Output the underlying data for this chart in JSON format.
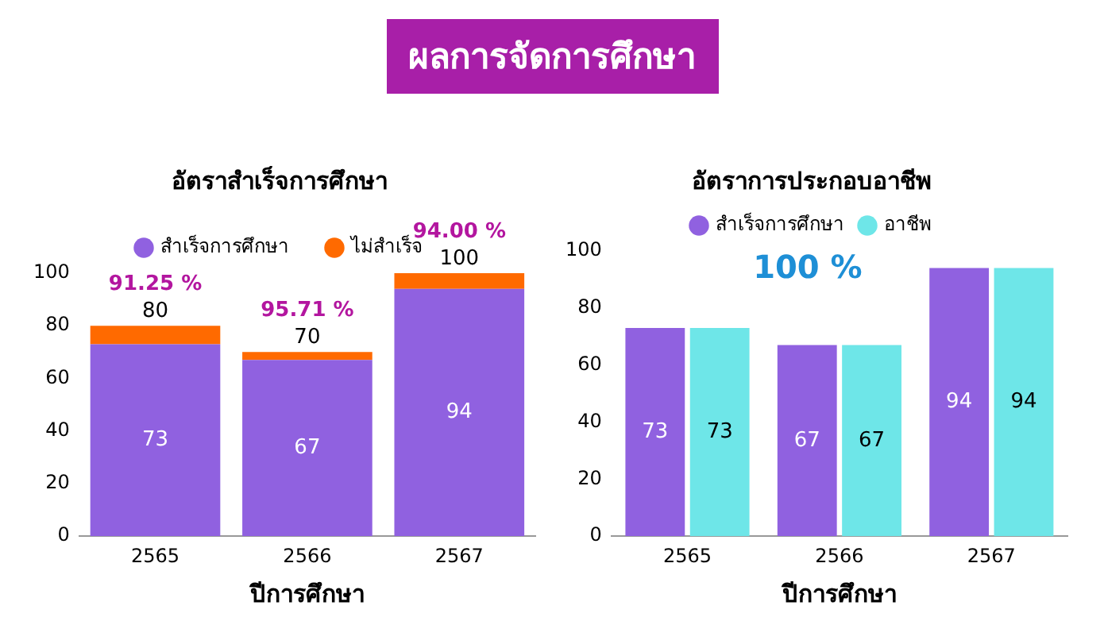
{
  "chart_data": [
    {
      "type": "other",
      "title": "ผลการจัดการศึกษา"
    },
    {
      "type": "bar",
      "title": "อัตราสำเร็จการศึกษา",
      "xlabel": "ปีการศึกษา",
      "categories": [
        "2565",
        "2566",
        "2567"
      ],
      "stacked": true,
      "legend": "top",
      "grid": false,
      "ylim": [
        0,
        100
      ],
      "yticks": [
        0,
        20,
        40,
        60,
        80,
        100
      ],
      "series": [
        {
          "name": "สำเร็จการศึกษา",
          "color": "#9061e0",
          "values": [
            73,
            67,
            94
          ],
          "value_labels": [
            "73",
            "67",
            "94"
          ]
        },
        {
          "name": "ไม่สำเร็จ",
          "color": "#ff6a00",
          "values": [
            7,
            3,
            6
          ]
        }
      ],
      "totals": [
        "80",
        "70",
        "100"
      ],
      "annotations": [
        "91.25 %",
        "95.71 %",
        "94.00 %"
      ]
    },
    {
      "type": "bar",
      "title": "อัตราการประกอบอาชีพ",
      "xlabel": "ปีการศึกษา",
      "categories": [
        "2565",
        "2566",
        "2567"
      ],
      "legend": "top",
      "grid": false,
      "ylim": [
        0,
        100
      ],
      "yticks": [
        0,
        20,
        40,
        60,
        80,
        100
      ],
      "series": [
        {
          "name": "สำเร็จการศึกษา",
          "color": "#9061e0",
          "values": [
            73,
            67,
            94
          ],
          "value_labels": [
            "73",
            "67",
            "94"
          ]
        },
        {
          "name": "อาชีพ",
          "color": "#6ee6e8",
          "values": [
            73,
            67,
            94
          ],
          "value_labels": [
            "73",
            "67",
            "94"
          ]
        }
      ],
      "annotations": [
        "100 %"
      ]
    }
  ]
}
